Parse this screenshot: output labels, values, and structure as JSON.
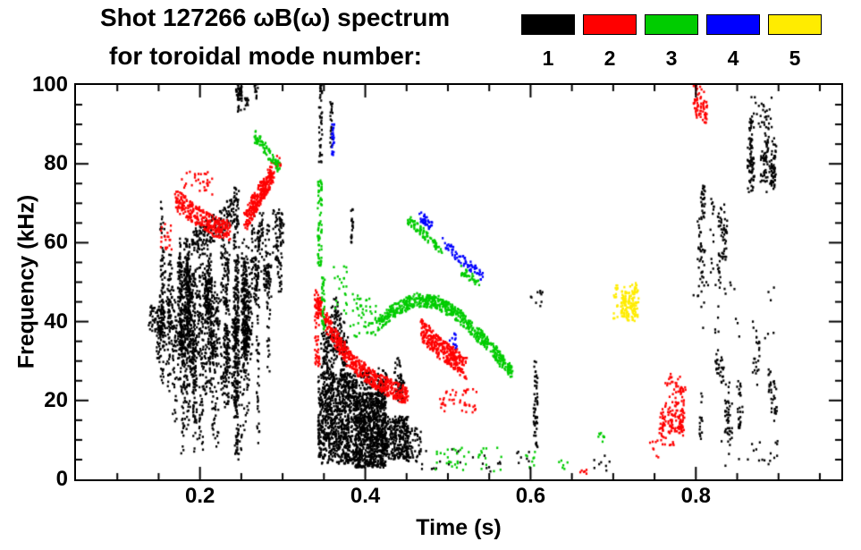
{
  "chart_data": {
    "type": "scatter",
    "title": "Shot 127266 ωB(ω) spectrum",
    "subtitle": "for toroidal mode number:",
    "xlabel": "Time (s)",
    "ylabel": "Frequency (kHz)",
    "xlim": [
      0.05,
      0.976
    ],
    "ylim": [
      0,
      100
    ],
    "xticks": [
      0.2,
      0.4,
      0.6,
      0.8
    ],
    "xminor_step": 0.05,
    "yticks": [
      0,
      20,
      40,
      60,
      80,
      100
    ],
    "yminor_step": 5,
    "grid": false,
    "legend_position": "top-right",
    "legend": [
      {
        "label": "1",
        "color": "#000000"
      },
      {
        "label": "2",
        "color": "#ff0000"
      },
      {
        "label": "3",
        "color": "#00cc00"
      },
      {
        "label": "4",
        "color": "#0000ff"
      },
      {
        "label": "5",
        "color": "#ffec00"
      }
    ],
    "series": [
      {
        "name": "n=1",
        "color": "#000000",
        "clusters": [
          {
            "kind": "blob",
            "t": [
              0.138,
              0.158
            ],
            "f": [
              37,
              44
            ],
            "n": 70
          },
          {
            "kind": "vstreaks",
            "t": [
              0.15,
              0.262
            ],
            "fc": [
              34,
              56
            ],
            "half": [
              4,
              18
            ],
            "k": 60,
            "n": 28,
            "clamp": [
              4,
              73
            ]
          },
          {
            "kind": "vstreaks",
            "t": [
              0.168,
              0.258
            ],
            "fc": [
              22,
              34
            ],
            "half": [
              6,
              22
            ],
            "k": 22,
            "n": 26,
            "clamp": [
              3,
              60
            ]
          },
          {
            "kind": "band",
            "pts": [
              [
                0.19,
                60
              ],
              [
                0.22,
                64
              ],
              [
                0.245,
                69
              ]
            ],
            "w": 7,
            "n": 170,
            "jt": 0.006
          },
          {
            "kind": "streak",
            "t": 0.244,
            "f": [
              5,
              74
            ],
            "n": 175,
            "w": 0.007
          },
          {
            "kind": "vstreaks",
            "t": [
              0.24,
              0.272
            ],
            "fc": [
              94,
              99
            ],
            "half": [
              1,
              3
            ],
            "k": 6,
            "n": 12
          },
          {
            "kind": "streak",
            "t": 0.252,
            "f": [
              10,
              60
            ],
            "n": 45,
            "w": 0.004
          },
          {
            "kind": "streak",
            "t": 0.27,
            "f": [
              8,
              55
            ],
            "n": 50,
            "w": 0.004
          },
          {
            "kind": "streak",
            "t": 0.283,
            "f": [
              25,
              65
            ],
            "n": 40,
            "w": 0.004
          },
          {
            "kind": "vstreaks",
            "t": [
              0.262,
              0.3
            ],
            "fc": [
              45,
              64
            ],
            "half": [
              3,
              9
            ],
            "k": 14,
            "n": 18
          },
          {
            "kind": "streak",
            "t": 0.346,
            "f": [
              80,
              100
            ],
            "n": 40,
            "w": 0.004
          },
          {
            "kind": "streak",
            "t": 0.359,
            "f": [
              84,
              96
            ],
            "n": 25,
            "w": 0.003
          },
          {
            "kind": "streak",
            "t": 0.384,
            "f": [
              60,
              70
            ],
            "n": 20,
            "w": 0.003
          },
          {
            "kind": "blob",
            "t": [
              0.343,
              0.39
            ],
            "f": [
              4,
              27
            ],
            "n": 900
          },
          {
            "kind": "blob",
            "t": [
              0.388,
              0.425
            ],
            "f": [
              3,
              22
            ],
            "n": 900
          },
          {
            "kind": "blob",
            "t": [
              0.423,
              0.452
            ],
            "f": [
              5,
              16
            ],
            "n": 280
          },
          {
            "kind": "vstreaks",
            "t": [
              0.343,
              0.38
            ],
            "fc": [
              28,
              40
            ],
            "half": [
              4,
              10
            ],
            "k": 12,
            "n": 20,
            "clamp": [
              2,
              50
            ]
          },
          {
            "kind": "vstreaks",
            "t": [
              0.39,
              0.45
            ],
            "fc": [
              22,
              27
            ],
            "half": [
              2,
              5
            ],
            "k": 12,
            "n": 12,
            "clamp": [
              2,
              35
            ]
          },
          {
            "kind": "blob",
            "t": [
              0.45,
              0.468
            ],
            "f": [
              4,
              13
            ],
            "n": 60
          },
          {
            "kind": "blob",
            "t": [
              0.46,
              0.6
            ],
            "f": [
              2,
              8
            ],
            "n": 30
          },
          {
            "kind": "streak",
            "t": 0.606,
            "f": [
              8,
              30
            ],
            "n": 55,
            "w": 0.005
          },
          {
            "kind": "blob",
            "t": [
              0.6,
              0.615
            ],
            "f": [
              42,
              48
            ],
            "n": 10
          },
          {
            "kind": "blob",
            "t": [
              0.672,
              0.696
            ],
            "f": [
              2,
              6
            ],
            "n": 8
          },
          {
            "kind": "vstreaks",
            "t": [
              0.8,
              0.835
            ],
            "fc": [
              50,
              70
            ],
            "half": [
              3,
              10
            ],
            "k": 9,
            "n": 14
          },
          {
            "kind": "vstreaks",
            "t": [
              0.82,
              0.855
            ],
            "fc": [
              14,
              30
            ],
            "half": [
              3,
              8
            ],
            "k": 7,
            "n": 14
          },
          {
            "kind": "vstreaks",
            "t": [
              0.862,
              0.895
            ],
            "fc": [
              77,
              88
            ],
            "half": [
              3,
              7
            ],
            "k": 10,
            "n": 20
          },
          {
            "kind": "blob",
            "t": [
              0.865,
              0.893
            ],
            "f": [
              89,
              97
            ],
            "n": 28
          },
          {
            "kind": "vstreaks",
            "t": [
              0.87,
              0.9
            ],
            "fc": [
              15,
              35
            ],
            "half": [
              3,
              8
            ],
            "k": 5,
            "n": 12
          },
          {
            "kind": "blob",
            "t": [
              0.83,
              0.9
            ],
            "f": [
              3,
              10
            ],
            "n": 20
          },
          {
            "kind": "blob",
            "t": [
              0.795,
              0.9
            ],
            "f": [
              35,
              50
            ],
            "n": 26
          },
          {
            "kind": "streak",
            "t": 0.836,
            "f": [
              55,
              70
            ],
            "n": 18,
            "w": 0.004
          },
          {
            "kind": "streak",
            "t": 0.806,
            "f": [
              10,
              22
            ],
            "n": 15,
            "w": 0.004
          }
        ]
      },
      {
        "name": "n=2",
        "color": "#ff0000",
        "clusters": [
          {
            "kind": "band",
            "pts": [
              [
                0.17,
                71
              ],
              [
                0.195,
                67
              ],
              [
                0.218,
                64
              ],
              [
                0.235,
                63
              ]
            ],
            "w": 5,
            "n": 290,
            "jt": 0.005
          },
          {
            "kind": "blob",
            "t": [
              0.175,
              0.215
            ],
            "f": [
              72,
              78
            ],
            "n": 35
          },
          {
            "kind": "blob",
            "t": [
              0.152,
              0.168
            ],
            "f": [
              58,
              66
            ],
            "n": 20
          },
          {
            "kind": "band",
            "pts": [
              [
                0.255,
                66
              ],
              [
                0.272,
                72
              ],
              [
                0.289,
                78
              ]
            ],
            "w": 5.5,
            "n": 300,
            "jt": 0.004
          },
          {
            "kind": "blob",
            "t": [
              0.292,
              0.3
            ],
            "f": [
              79,
              82
            ],
            "n": 8
          },
          {
            "kind": "band",
            "pts": [
              [
                0.34,
                46
              ],
              [
                0.358,
                38
              ],
              [
                0.378,
                31
              ],
              [
                0.405,
                26
              ],
              [
                0.432,
                23
              ],
              [
                0.452,
                21
              ]
            ],
            "w": 4.5,
            "n": 540,
            "jt": 0.004
          },
          {
            "kind": "streak",
            "t": 0.342,
            "f": [
              28,
              46
            ],
            "n": 55,
            "w": 0.006
          },
          {
            "kind": "band",
            "pts": [
              [
                0.468,
                38
              ],
              [
                0.487,
                34
              ],
              [
                0.505,
                31
              ],
              [
                0.522,
                28
              ]
            ],
            "w": 5.5,
            "n": 330,
            "jt": 0.004
          },
          {
            "kind": "blob",
            "t": [
              0.49,
              0.535
            ],
            "f": [
              17,
              23
            ],
            "n": 45
          },
          {
            "kind": "vstreaks",
            "t": [
              0.758,
              0.792
            ],
            "fc": [
              12,
              21
            ],
            "half": [
              3,
              7
            ],
            "k": 9,
            "n": 18
          },
          {
            "kind": "blob",
            "t": [
              0.763,
              0.785
            ],
            "f": [
              22,
              27
            ],
            "n": 20
          },
          {
            "kind": "blob",
            "t": [
              0.744,
              0.756
            ],
            "f": [
              5,
              10
            ],
            "n": 8
          },
          {
            "kind": "vstreaks",
            "t": [
              0.797,
              0.825
            ],
            "fc": [
              92,
              98
            ],
            "half": [
              2,
              5
            ],
            "k": 6,
            "n": 12
          },
          {
            "kind": "blob",
            "t": [
              0.658,
              0.668
            ],
            "f": [
              1,
              3
            ],
            "n": 6
          }
        ]
      },
      {
        "name": "n=3",
        "color": "#00cc00",
        "clusters": [
          {
            "kind": "band",
            "pts": [
              [
                0.267,
                87
              ],
              [
                0.296,
                79
              ]
            ],
            "w": 3,
            "n": 80,
            "jt": 0.003
          },
          {
            "kind": "streak",
            "t": 0.345,
            "f": [
              54,
              76
            ],
            "n": 70,
            "w": 0.005
          },
          {
            "kind": "streak",
            "t": 0.349,
            "f": [
              38,
              52
            ],
            "n": 40,
            "w": 0.004
          },
          {
            "kind": "blob",
            "t": [
              0.362,
              0.378
            ],
            "f": [
              42,
              55
            ],
            "n": 22
          },
          {
            "kind": "blob",
            "t": [
              0.381,
              0.413
            ],
            "f": [
              36,
              47
            ],
            "n": 50
          },
          {
            "kind": "band",
            "pts": [
              [
                0.413,
                39
              ],
              [
                0.436,
                43
              ],
              [
                0.46,
                45.5
              ],
              [
                0.487,
                45
              ],
              [
                0.51,
                42
              ],
              [
                0.53,
                38
              ],
              [
                0.55,
                34
              ],
              [
                0.565,
                30
              ],
              [
                0.578,
                27
              ]
            ],
            "w": 3.5,
            "n": 640,
            "jt": 0.003
          },
          {
            "kind": "band",
            "pts": [
              [
                0.452,
                66
              ],
              [
                0.472,
                62
              ],
              [
                0.492,
                58
              ]
            ],
            "w": 2.5,
            "n": 85,
            "jt": 0.003
          },
          {
            "kind": "band",
            "pts": [
              [
                0.515,
                53
              ],
              [
                0.538,
                50
              ]
            ],
            "w": 2.5,
            "n": 35,
            "jt": 0.003
          },
          {
            "kind": "blob",
            "t": [
              0.478,
              0.565
            ],
            "f": [
              2,
              8
            ],
            "n": 40
          },
          {
            "kind": "blob",
            "t": [
              0.594,
              0.606
            ],
            "f": [
              3,
              7
            ],
            "n": 8
          },
          {
            "kind": "blob",
            "t": [
              0.682,
              0.692
            ],
            "f": [
              8,
              12
            ],
            "n": 8
          },
          {
            "kind": "blob",
            "t": [
              0.634,
              0.648
            ],
            "f": [
              2,
              6
            ],
            "n": 6
          }
        ]
      },
      {
        "name": "n=4",
        "color": "#0000ff",
        "clusters": [
          {
            "kind": "streak",
            "t": 0.361,
            "f": [
              82,
              90
            ],
            "n": 22,
            "w": 0.003
          },
          {
            "kind": "band",
            "pts": [
              [
                0.466,
                67
              ],
              [
                0.48,
                64
              ]
            ],
            "w": 2.5,
            "n": 35,
            "jt": 0.003
          },
          {
            "kind": "band",
            "pts": [
              [
                0.495,
                60
              ],
              [
                0.515,
                56
              ],
              [
                0.533,
                53
              ],
              [
                0.543,
                51
              ]
            ],
            "w": 2.5,
            "n": 70,
            "jt": 0.003
          },
          {
            "kind": "blob",
            "t": [
              0.502,
              0.512
            ],
            "f": [
              33,
              37
            ],
            "n": 12
          }
        ]
      },
      {
        "name": "n=5",
        "color": "#ffec00",
        "clusters": [
          {
            "kind": "vstreaks",
            "t": [
              0.7,
              0.733
            ],
            "fc": [
              42,
              47
            ],
            "half": [
              2,
              5
            ],
            "k": 8,
            "n": 18
          },
          {
            "kind": "blob",
            "t": [
              0.712,
              0.73
            ],
            "f": [
              44,
              49
            ],
            "n": 25
          }
        ]
      }
    ]
  }
}
